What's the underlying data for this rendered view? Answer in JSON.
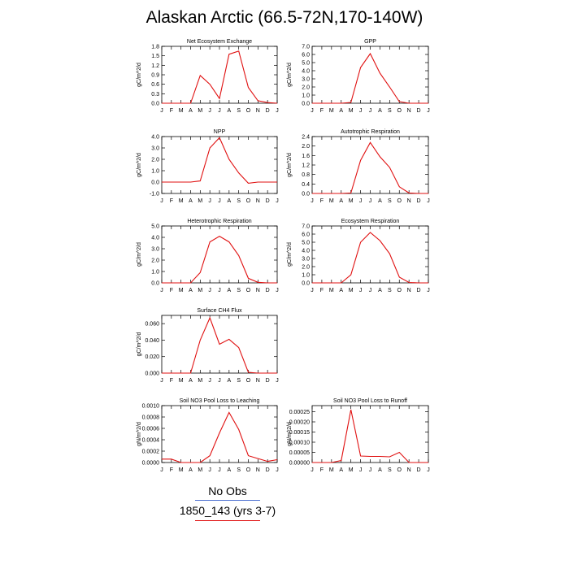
{
  "title": "Alaskan Arctic (66.5-72N,170-140W)",
  "legend": {
    "obs_label": "No Obs",
    "obs_color": "#4a6fd0",
    "model_label": "1850_143 (yrs 3-7)",
    "model_color": "#e01010"
  },
  "chart_data": [
    {
      "type": "line",
      "title": "Net Ecosystem Exchange",
      "ylabel": "gC/m^2/d",
      "categories": [
        "J",
        "F",
        "M",
        "A",
        "M",
        "J",
        "J",
        "A",
        "S",
        "O",
        "N",
        "D",
        "J"
      ],
      "ylim": [
        0,
        1.8
      ],
      "yticks": [
        "0.0",
        "0.3",
        "0.6",
        "0.9",
        "1.2",
        "1.5",
        "1.8"
      ],
      "series": [
        {
          "values": [
            0.0,
            0.0,
            0.0,
            0.0,
            0.88,
            0.6,
            0.15,
            1.55,
            1.65,
            0.5,
            0.08,
            0.02,
            0.0
          ]
        }
      ]
    },
    {
      "type": "line",
      "title": "GPP",
      "ylabel": "gC/m^2/d",
      "categories": [
        "J",
        "F",
        "M",
        "A",
        "M",
        "J",
        "J",
        "A",
        "S",
        "O",
        "N",
        "D",
        "J"
      ],
      "ylim": [
        0,
        7.0
      ],
      "yticks": [
        "0.0",
        "1.0",
        "2.0",
        "3.0",
        "4.0",
        "5.0",
        "6.0",
        "7.0"
      ],
      "series": [
        {
          "values": [
            0.0,
            0.0,
            0.0,
            0.0,
            0.1,
            4.4,
            6.1,
            3.7,
            2.0,
            0.2,
            0.0,
            0.0,
            0.0
          ]
        }
      ]
    },
    {
      "type": "line",
      "title": "NPP",
      "ylabel": "gC/m^2/d",
      "categories": [
        "J",
        "F",
        "M",
        "A",
        "M",
        "J",
        "J",
        "A",
        "S",
        "O",
        "N",
        "D",
        "J"
      ],
      "ylim": [
        -1.0,
        4.0
      ],
      "yticks": [
        "-1.0",
        "0.0",
        "1.0",
        "2.0",
        "3.0",
        "4.0"
      ],
      "series": [
        {
          "values": [
            0.0,
            0.0,
            0.0,
            0.0,
            0.1,
            3.0,
            3.9,
            2.0,
            0.8,
            -0.1,
            0.0,
            0.0,
            0.0
          ]
        }
      ]
    },
    {
      "type": "line",
      "title": "Autotrophic Respiration",
      "ylabel": "gC/m^2/d",
      "categories": [
        "J",
        "F",
        "M",
        "A",
        "M",
        "J",
        "J",
        "A",
        "S",
        "O",
        "N",
        "D",
        "J"
      ],
      "ylim": [
        0,
        2.4
      ],
      "yticks": [
        "0.0",
        "0.4",
        "0.8",
        "1.2",
        "1.6",
        "2.0",
        "2.4"
      ],
      "series": [
        {
          "values": [
            0.0,
            0.0,
            0.0,
            0.0,
            0.02,
            1.4,
            2.15,
            1.55,
            1.1,
            0.28,
            0.02,
            0.0,
            0.0
          ]
        }
      ]
    },
    {
      "type": "line",
      "title": "Heterotrophic Respiration",
      "ylabel": "gC/m^2/d",
      "categories": [
        "J",
        "F",
        "M",
        "A",
        "M",
        "J",
        "J",
        "A",
        "S",
        "O",
        "N",
        "D",
        "J"
      ],
      "ylim": [
        0,
        5.0
      ],
      "yticks": [
        "0.0",
        "1.0",
        "2.0",
        "3.0",
        "4.0",
        "5.0"
      ],
      "series": [
        {
          "values": [
            0.0,
            0.0,
            0.0,
            0.0,
            0.9,
            3.6,
            4.1,
            3.6,
            2.4,
            0.4,
            0.05,
            0.0,
            0.0
          ]
        }
      ]
    },
    {
      "type": "line",
      "title": "Ecosystem Respiration",
      "ylabel": "gC/m^2/d",
      "categories": [
        "J",
        "F",
        "M",
        "A",
        "M",
        "J",
        "J",
        "A",
        "S",
        "O",
        "N",
        "D",
        "J"
      ],
      "ylim": [
        0,
        7.0
      ],
      "yticks": [
        "0.0",
        "1.0",
        "2.0",
        "3.0",
        "4.0",
        "5.0",
        "6.0",
        "7.0"
      ],
      "series": [
        {
          "values": [
            0.0,
            0.0,
            0.0,
            0.0,
            1.0,
            5.0,
            6.2,
            5.2,
            3.6,
            0.7,
            0.05,
            0.0,
            0.0
          ]
        }
      ]
    },
    {
      "type": "line",
      "title": "Surface CH4 Flux",
      "ylabel": "gC/m^2/d",
      "categories": [
        "J",
        "F",
        "M",
        "A",
        "M",
        "J",
        "J",
        "A",
        "S",
        "O",
        "N",
        "D",
        "J"
      ],
      "ylim": [
        0,
        0.07
      ],
      "yticks": [
        "0.000",
        "0.020",
        "0.040",
        "0.060"
      ],
      "ytick_values": [
        0,
        0.02,
        0.04,
        0.06
      ],
      "series": [
        {
          "values": [
            0.0,
            0.0,
            0.0,
            0.0,
            0.04,
            0.067,
            0.035,
            0.041,
            0.031,
            0.001,
            0.0,
            0.0,
            0.0
          ]
        }
      ]
    },
    {
      "type": "line",
      "title": "Soil NO3 Pool Loss to Leaching",
      "ylabel": "gN/m^2/d",
      "categories": [
        "J",
        "F",
        "M",
        "A",
        "M",
        "J",
        "J",
        "A",
        "S",
        "O",
        "N",
        "D",
        "J"
      ],
      "ylim": [
        0,
        0.001
      ],
      "yticks": [
        "0.0000",
        "0.0002",
        "0.0004",
        "0.0006",
        "0.0008",
        "0.0010"
      ],
      "series": [
        {
          "values": [
            6e-05,
            6e-05,
            0.0,
            0.0,
            0.0,
            0.00012,
            0.00052,
            0.00088,
            0.00058,
            0.00012,
            7e-05,
            2e-05,
            5e-05
          ]
        }
      ]
    },
    {
      "type": "line",
      "title": "Soil NO3 Pool Loss to Runoff",
      "ylabel": "gN/m^2/d",
      "categories": [
        "J",
        "F",
        "M",
        "A",
        "M",
        "J",
        "J",
        "A",
        "S",
        "O",
        "N",
        "D",
        "J"
      ],
      "ylim": [
        0,
        0.00028
      ],
      "yticks": [
        "0.00000",
        "0.00005",
        "0.00010",
        "0.00015",
        "0.00020",
        "0.00025"
      ],
      "ytick_values": [
        0,
        5e-05,
        0.0001,
        0.00015,
        0.0002,
        0.00025
      ],
      "series": [
        {
          "values": [
            0.0,
            0.0,
            0.0,
            1e-05,
            0.00026,
            3.2e-05,
            3e-05,
            3e-05,
            2.8e-05,
            5e-05,
            0.0,
            0.0,
            0.0
          ]
        }
      ]
    }
  ]
}
